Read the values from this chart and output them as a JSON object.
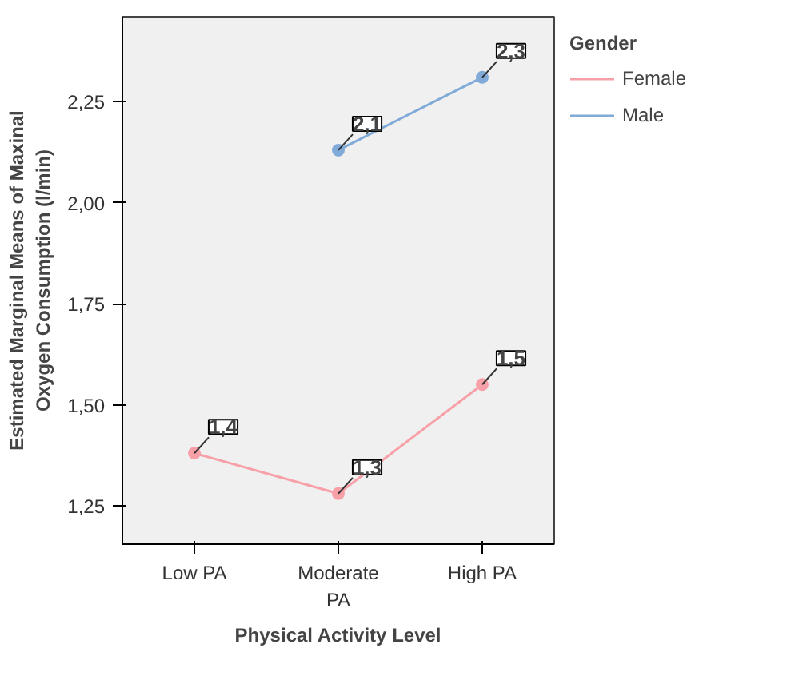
{
  "chart_data": {
    "type": "line",
    "xlabel": "Physical Activity Level",
    "ylabel": "Estimated Marginal Means of Maxinal\nOxygen Consumption (l/min)",
    "legend_title": "Gender",
    "categories": [
      "Low PA",
      "Moderate PA",
      "High PA"
    ],
    "series": [
      {
        "name": "Female",
        "color": "#f8a0a8",
        "values": [
          1.38,
          1.28,
          1.55
        ],
        "value_labels": [
          "1,4",
          "1,3",
          "1,5"
        ]
      },
      {
        "name": "Male",
        "color": "#80aad8",
        "values": [
          null,
          2.13,
          2.31
        ],
        "value_labels": [
          null,
          "2,1",
          "2,3"
        ]
      }
    ],
    "ylim": [
      1.155,
      2.46
    ],
    "yticks": [
      {
        "value": 1.25,
        "label": "1,25"
      },
      {
        "value": 1.5,
        "label": "1,50"
      },
      {
        "value": 1.75,
        "label": "1,75"
      },
      {
        "value": 2.0,
        "label": "2,00"
      },
      {
        "value": 2.25,
        "label": "2,25"
      }
    ],
    "marker": "circle",
    "legend": "right",
    "grid": false
  }
}
